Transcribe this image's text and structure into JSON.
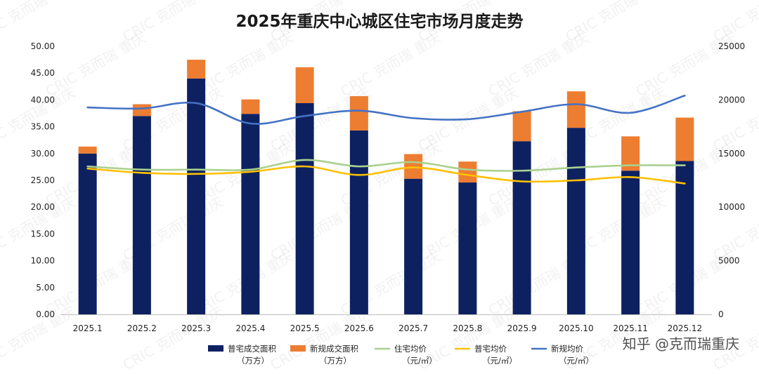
{
  "chart_data": {
    "type": "bar",
    "title": "2025年重庆中心城区住宅市场月度走势",
    "categories": [
      "2025.1",
      "2025.2",
      "2025.3",
      "2025.4",
      "2025.5",
      "2025.6",
      "2025.7",
      "2025.8",
      "2025.9",
      "2025.10",
      "2025.11",
      "2025.12"
    ],
    "y_left": {
      "ylim": [
        0,
        50
      ],
      "ticks": [
        "0.00",
        "5.00",
        "10.00",
        "15.00",
        "20.00",
        "25.00",
        "30.00",
        "35.00",
        "40.00",
        "45.00",
        "50.00"
      ]
    },
    "y_right": {
      "ylim": [
        0,
        25000
      ],
      "ticks": [
        "0",
        "5000",
        "10000",
        "15000",
        "20000",
        "25000"
      ]
    },
    "series": [
      {
        "name": "普宅成交面积",
        "unit": "（万方）",
        "type": "bar",
        "stack": "area",
        "axis": "left",
        "color": "#0d2161",
        "values": [
          30.0,
          37.0,
          44.0,
          37.4,
          39.4,
          34.3,
          25.3,
          24.6,
          32.3,
          34.8,
          26.8,
          28.6
        ]
      },
      {
        "name": "新规成交面积",
        "unit": "（万方）",
        "type": "bar",
        "stack": "area",
        "axis": "left",
        "color": "#ed7d31",
        "values": [
          1.3,
          2.2,
          3.5,
          2.7,
          6.7,
          6.4,
          4.6,
          3.9,
          5.6,
          6.8,
          6.4,
          8.1
        ]
      },
      {
        "name": "住宅均价",
        "unit": "（元/㎡）",
        "type": "line",
        "axis": "right",
        "color": "#a9d18e",
        "values": [
          13800,
          13500,
          13500,
          13500,
          14400,
          13800,
          14200,
          13500,
          13400,
          13700,
          13900,
          13900
        ]
      },
      {
        "name": "普宅均价",
        "unit": "（元/㎡）",
        "type": "line",
        "axis": "right",
        "color": "#ffc000",
        "values": [
          13600,
          13200,
          13100,
          13300,
          13800,
          13000,
          13700,
          13000,
          12400,
          12500,
          12800,
          12200
        ]
      },
      {
        "name": "新规均价",
        "unit": "（元/㎡）",
        "type": "line",
        "axis": "right",
        "color": "#4472c4",
        "values": [
          19300,
          19200,
          19700,
          17800,
          18500,
          19000,
          18300,
          18200,
          18900,
          19600,
          18800,
          20400
        ]
      }
    ]
  },
  "watermark": {
    "text": "知乎 @克而瑞重庆",
    "repeat_text": "CRIC 克而瑞 重庆"
  }
}
